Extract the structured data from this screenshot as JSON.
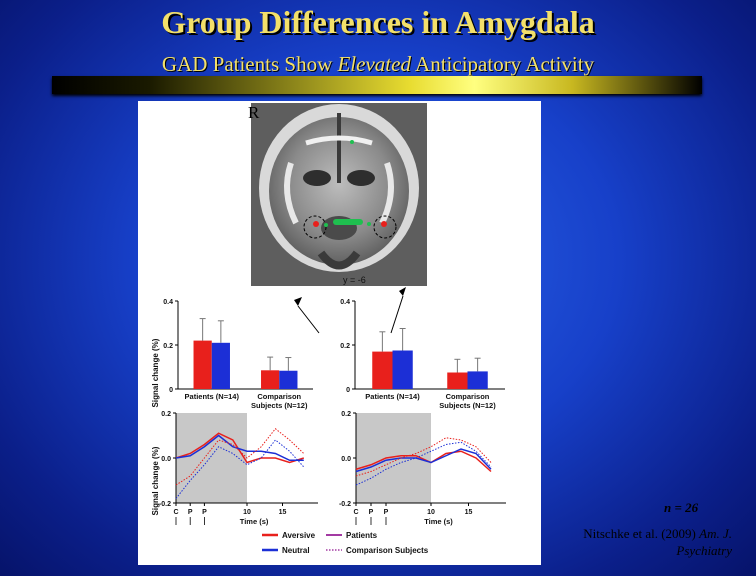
{
  "slide": {
    "title": "Group Differences in Amygdala",
    "subtitle_pre": "GAD Patients Show ",
    "subtitle_em": "Elevated",
    "subtitle_post": " Anticipatory Activity"
  },
  "figure": {
    "orientation_label": "R",
    "slice_label": "y = -6",
    "bar_ylabel": "Signal change (%)",
    "bar_yticks": [
      "0.4",
      "0.2",
      "0"
    ],
    "bar_group1": "Patients (N=14)",
    "bar_group2_line1": "Comparison",
    "bar_group2_line2": "Subjects (N=12)",
    "ts_ylabel": "Signal change (%)",
    "ts_yticks": [
      "0.2",
      "0.0",
      "-0.2"
    ],
    "ts_xticks": [
      "C",
      "P",
      "P",
      "10",
      "15"
    ],
    "ts_xlabel": "Time (s)",
    "legend_aversive": "Aversive",
    "legend_neutral": "Neutral",
    "legend_patients": "Patients",
    "legend_comparison": "Comparison Subjects",
    "colors": {
      "aversive": "#e8201c",
      "neutral": "#1c2fd6"
    }
  },
  "chart_data": [
    {
      "type": "bar",
      "panel": "left amygdala",
      "categories": [
        "Patients (N=14)",
        "Comparison Subjects (N=12)"
      ],
      "series": [
        {
          "name": "Aversive",
          "values": [
            0.22,
            0.085
          ],
          "errors": [
            0.1,
            0.06
          ]
        },
        {
          "name": "Neutral",
          "values": [
            0.21,
            0.083
          ],
          "errors": [
            0.1,
            0.06
          ]
        }
      ],
      "ylabel": "Signal change (%)",
      "ylim": [
        0,
        0.4
      ]
    },
    {
      "type": "bar",
      "panel": "right amygdala",
      "categories": [
        "Patients (N=14)",
        "Comparison Subjects (N=12)"
      ],
      "series": [
        {
          "name": "Aversive",
          "values": [
            0.17,
            0.075
          ],
          "errors": [
            0.09,
            0.06
          ]
        },
        {
          "name": "Neutral",
          "values": [
            0.175,
            0.08
          ],
          "errors": [
            0.1,
            0.06
          ]
        }
      ],
      "ylabel": "Signal change (%)",
      "ylim": [
        0,
        0.4
      ]
    },
    {
      "type": "line",
      "panel": "left amygdala time course",
      "x": [
        0,
        2,
        4,
        6,
        8,
        10,
        12,
        14,
        16,
        18
      ],
      "series": [
        {
          "name": "Patients Aversive",
          "values": [
            0.0,
            0.02,
            0.06,
            0.11,
            0.08,
            -0.02,
            0.0,
            0.0,
            -0.02,
            0.0
          ]
        },
        {
          "name": "Patients Neutral",
          "values": [
            0.0,
            0.01,
            0.05,
            0.1,
            0.05,
            0.03,
            0.03,
            0.02,
            -0.01,
            -0.01
          ]
        },
        {
          "name": "Comparison Aversive",
          "values": [
            -0.12,
            -0.08,
            0.0,
            0.08,
            0.06,
            0.0,
            0.05,
            0.13,
            0.08,
            0.02
          ]
        },
        {
          "name": "Comparison Neutral",
          "values": [
            -0.18,
            -0.1,
            -0.03,
            0.05,
            0.02,
            -0.03,
            0.0,
            0.08,
            0.03,
            -0.04
          ]
        }
      ],
      "xlabel": "Time (s)",
      "ylabel": "Signal change (%)",
      "xlim": [
        0,
        20
      ],
      "ylim": [
        -0.2,
        0.2
      ]
    },
    {
      "type": "line",
      "panel": "right amygdala time course",
      "x": [
        0,
        2,
        4,
        6,
        8,
        10,
        12,
        14,
        16,
        18
      ],
      "series": [
        {
          "name": "Patients Aversive",
          "values": [
            -0.05,
            -0.03,
            0.0,
            0.01,
            0.01,
            -0.02,
            0.02,
            0.03,
            0.0,
            -0.06
          ]
        },
        {
          "name": "Patients Neutral",
          "values": [
            -0.06,
            -0.04,
            -0.01,
            0.0,
            0.0,
            -0.02,
            0.01,
            0.04,
            0.02,
            -0.05
          ]
        },
        {
          "name": "Comparison Aversive",
          "values": [
            -0.08,
            -0.06,
            -0.03,
            0.0,
            0.02,
            0.05,
            0.09,
            0.08,
            0.05,
            -0.02
          ]
        },
        {
          "name": "Comparison Neutral",
          "values": [
            -0.12,
            -0.09,
            -0.05,
            -0.02,
            0.0,
            0.03,
            0.06,
            0.07,
            0.03,
            -0.04
          ]
        }
      ],
      "xlabel": "Time (s)",
      "ylabel": "Signal change (%)",
      "xlim": [
        0,
        20
      ],
      "ylim": [
        -0.2,
        0.2
      ]
    }
  ],
  "footnote": {
    "n": "n = 26",
    "citation_authors": "Nitschke et al. (2009) ",
    "citation_journal_line1": "Am. J.",
    "citation_journal_line2": "Psychiatry"
  }
}
